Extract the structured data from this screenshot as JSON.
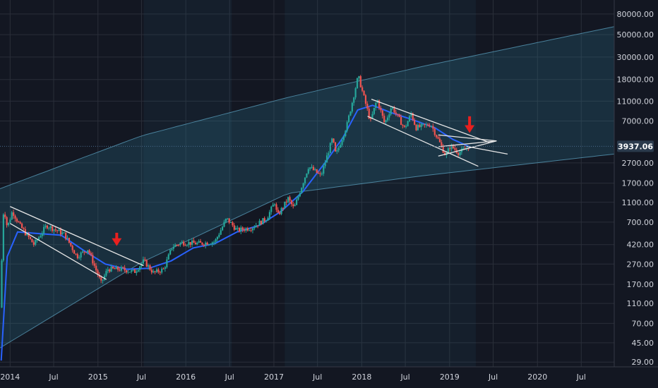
{
  "colors": {
    "background": "#131722",
    "grid": "#2a2e39",
    "band_fill": "#2b6f8a",
    "band_line": "#5fa8c8",
    "bull": "#26a69a",
    "bear": "#ef5350",
    "ma": "#2962ff",
    "trend": "#e6e6e6",
    "arrow": "#e8201f",
    "price_tag": "#2a3a4c"
  },
  "price_tag": {
    "value": "3937.06",
    "price": 3937.06
  },
  "chart_data": {
    "type": "candlestick",
    "y_scale": "log",
    "ylim": [
      26,
      110000
    ],
    "xlim": [
      "2013-11-20",
      "2020-11-15"
    ],
    "y_ticks": [
      29,
      45,
      70,
      110,
      170,
      270,
      420,
      700,
      1100,
      1700,
      2700,
      7000,
      11000,
      18000,
      30000,
      50000,
      80000
    ],
    "y_tick_labels": [
      "29.00",
      "45.00",
      "70.00",
      "110.00",
      "170.00",
      "270.00",
      "420.00",
      "700.00",
      "1100.00",
      "1700.00",
      "2700.00",
      "7000.00",
      "11000.00",
      "18000.00",
      "30000.00",
      "50000.00",
      "80000.00"
    ],
    "x_ticks": [
      {
        "label": "2014",
        "date": "2014-01-01"
      },
      {
        "label": "Jul",
        "date": "2014-07-01"
      },
      {
        "label": "2015",
        "date": "2015-01-01"
      },
      {
        "label": "Jul",
        "date": "2015-07-01"
      },
      {
        "label": "2016",
        "date": "2016-01-01"
      },
      {
        "label": "Jul",
        "date": "2016-07-01"
      },
      {
        "label": "2017",
        "date": "2017-01-01"
      },
      {
        "label": "Jul",
        "date": "2017-07-01"
      },
      {
        "label": "2018",
        "date": "2018-01-01"
      },
      {
        "label": "Jul",
        "date": "2018-07-01"
      },
      {
        "label": "2019",
        "date": "2019-01-01"
      },
      {
        "label": "Jul",
        "date": "2019-07-01"
      },
      {
        "label": "2020",
        "date": "2020-01-01"
      },
      {
        "label": "Jul",
        "date": "2020-07-01"
      }
    ],
    "price_path": [
      [
        "2013-11-20",
        100
      ],
      [
        "2013-12-05",
        1000
      ],
      [
        "2013-12-20",
        620
      ],
      [
        "2014-01-10",
        900
      ],
      [
        "2014-02-10",
        650
      ],
      [
        "2014-04-10",
        420
      ],
      [
        "2014-06-01",
        650
      ],
      [
        "2014-08-15",
        530
      ],
      [
        "2014-10-05",
        320
      ],
      [
        "2014-11-20",
        380
      ],
      [
        "2015-01-14",
        175
      ],
      [
        "2015-02-10",
        240
      ],
      [
        "2015-04-10",
        240
      ],
      [
        "2015-06-01",
        225
      ],
      [
        "2015-07-10",
        290
      ],
      [
        "2015-08-20",
        220
      ],
      [
        "2015-10-01",
        240
      ],
      [
        "2015-11-05",
        400
      ],
      [
        "2015-12-15",
        440
      ],
      [
        "2016-03-01",
        430
      ],
      [
        "2016-05-01",
        450
      ],
      [
        "2016-06-18",
        760
      ],
      [
        "2016-08-01",
        580
      ],
      [
        "2016-10-01",
        620
      ],
      [
        "2016-12-01",
        760
      ],
      [
        "2017-01-04",
        1100
      ],
      [
        "2017-01-15",
        800
      ],
      [
        "2017-03-01",
        1200
      ],
      [
        "2017-03-25",
        950
      ],
      [
        "2017-05-25",
        2500
      ],
      [
        "2017-07-15",
        2000
      ],
      [
        "2017-09-01",
        4700
      ],
      [
        "2017-09-15",
        3200
      ],
      [
        "2017-11-01",
        6500
      ],
      [
        "2017-12-17",
        19500
      ],
      [
        "2018-02-06",
        6900
      ],
      [
        "2018-03-05",
        11500
      ],
      [
        "2018-04-06",
        6600
      ],
      [
        "2018-05-05",
        9800
      ],
      [
        "2018-06-28",
        5900
      ],
      [
        "2018-07-25",
        8300
      ],
      [
        "2018-08-14",
        6000
      ],
      [
        "2018-10-15",
        6500
      ],
      [
        "2018-11-20",
        4300
      ],
      [
        "2018-12-15",
        3200
      ],
      [
        "2019-01-05",
        4000
      ],
      [
        "2019-02-07",
        3400
      ],
      [
        "2019-03-25",
        3937
      ]
    ],
    "moving_average": [
      [
        "2013-11-25",
        30
      ],
      [
        "2013-12-20",
        320
      ],
      [
        "2014-02-01",
        560
      ],
      [
        "2014-05-01",
        540
      ],
      [
        "2014-08-01",
        520
      ],
      [
        "2014-11-01",
        370
      ],
      [
        "2015-02-01",
        270
      ],
      [
        "2015-05-01",
        240
      ],
      [
        "2015-08-01",
        245
      ],
      [
        "2015-11-01",
        290
      ],
      [
        "2016-02-01",
        390
      ],
      [
        "2016-05-01",
        430
      ],
      [
        "2016-08-01",
        560
      ],
      [
        "2016-11-01",
        650
      ],
      [
        "2017-02-01",
        900
      ],
      [
        "2017-05-01",
        1400
      ],
      [
        "2017-08-01",
        2700
      ],
      [
        "2017-10-15",
        4800
      ],
      [
        "2017-12-15",
        9000
      ],
      [
        "2018-02-15",
        10000
      ],
      [
        "2018-05-01",
        8500
      ],
      [
        "2018-08-01",
        7200
      ],
      [
        "2018-11-01",
        6000
      ],
      [
        "2019-01-15",
        4600
      ],
      [
        "2019-03-25",
        3900
      ]
    ],
    "rainbow_band": {
      "upper": [
        [
          "2013-11-20",
          1500
        ],
        [
          "2015-07-01",
          5000
        ],
        [
          "2017-03-01",
          12000
        ],
        [
          "2018-09-01",
          24000
        ],
        [
          "2020-11-15",
          60000
        ]
      ],
      "lower": [
        [
          "2013-11-20",
          40
        ],
        [
          "2015-07-01",
          280
        ],
        [
          "2017-03-01",
          1350
        ],
        [
          "2018-09-01",
          2000
        ],
        [
          "2020-11-15",
          3300
        ]
      ]
    },
    "highlight_regions": [
      {
        "from": "2015-07-10",
        "to": "2016-07-10"
      },
      {
        "from": "2017-02-15",
        "to": "2019-04-20"
      }
    ],
    "trend_lines": [
      {
        "from": [
          "2014-01-01",
          1000
        ],
        "to": [
          "2015-07-10",
          260
        ]
      },
      {
        "from": [
          "2014-01-01",
          680
        ],
        "to": [
          "2015-02-05",
          190
        ]
      },
      {
        "from": [
          "2018-02-10",
          11500
        ],
        "to": [
          "2019-06-15",
          4300
        ]
      },
      {
        "from": [
          "2018-01-25",
          7800
        ],
        "to": [
          "2019-04-30",
          2500
        ]
      },
      {
        "from": [
          "2018-11-15",
          5100
        ],
        "to": [
          "2019-07-15",
          4450
        ]
      },
      {
        "from": [
          "2018-11-15",
          3900
        ],
        "to": [
          "2019-07-15",
          4450
        ]
      },
      {
        "from": [
          "2018-11-15",
          3150
        ],
        "to": [
          "2019-07-15",
          4450
        ]
      },
      {
        "from": [
          "2019-03-10",
          3940
        ],
        "to": [
          "2019-08-30",
          3300
        ]
      }
    ],
    "arrows": [
      {
        "date": "2015-03-20",
        "from": 550,
        "to": 420
      },
      {
        "date": "2019-03-25",
        "from": 7800,
        "to": 5500
      }
    ]
  }
}
